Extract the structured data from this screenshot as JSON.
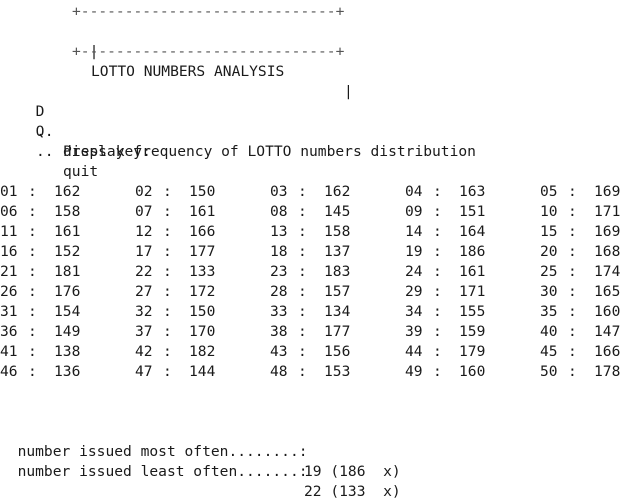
{
  "header": {
    "border_top": "+-----------------------------+",
    "title_left": "|",
    "title": "LOTTO NUMBERS ANALYSIS",
    "title_right": "|",
    "border_bottom": "+-----------------------------+"
  },
  "menu": {
    "items": [
      {
        "key": "D",
        "sep": "..",
        "label": "display frequency of LOTTO numbers distribution"
      },
      {
        "key": "Q",
        "sep": "..",
        "label": "quit"
      }
    ],
    "prompt": "Press key:"
  },
  "frequency_table": {
    "rows": [
      [
        {
          "n": "01",
          "f": "162"
        },
        {
          "n": "02",
          "f": "150"
        },
        {
          "n": "03",
          "f": "162"
        },
        {
          "n": "04",
          "f": "163"
        },
        {
          "n": "05",
          "f": "169"
        }
      ],
      [
        {
          "n": "06",
          "f": "158"
        },
        {
          "n": "07",
          "f": "161"
        },
        {
          "n": "08",
          "f": "145"
        },
        {
          "n": "09",
          "f": "151"
        },
        {
          "n": "10",
          "f": "171"
        }
      ],
      [
        {
          "n": "11",
          "f": "161"
        },
        {
          "n": "12",
          "f": "166"
        },
        {
          "n": "13",
          "f": "158"
        },
        {
          "n": "14",
          "f": "164"
        },
        {
          "n": "15",
          "f": "169"
        }
      ],
      [
        {
          "n": "16",
          "f": "152"
        },
        {
          "n": "17",
          "f": "177"
        },
        {
          "n": "18",
          "f": "137"
        },
        {
          "n": "19",
          "f": "186"
        },
        {
          "n": "20",
          "f": "168"
        }
      ],
      [
        {
          "n": "21",
          "f": "181"
        },
        {
          "n": "22",
          "f": "133"
        },
        {
          "n": "23",
          "f": "183"
        },
        {
          "n": "24",
          "f": "161"
        },
        {
          "n": "25",
          "f": "174"
        }
      ],
      [
        {
          "n": "26",
          "f": "176"
        },
        {
          "n": "27",
          "f": "172"
        },
        {
          "n": "28",
          "f": "157"
        },
        {
          "n": "29",
          "f": "171"
        },
        {
          "n": "30",
          "f": "165"
        }
      ],
      [
        {
          "n": "31",
          "f": "154"
        },
        {
          "n": "32",
          "f": "150"
        },
        {
          "n": "33",
          "f": "134"
        },
        {
          "n": "34",
          "f": "155"
        },
        {
          "n": "35",
          "f": "160"
        }
      ],
      [
        {
          "n": "36",
          "f": "149"
        },
        {
          "n": "37",
          "f": "170"
        },
        {
          "n": "38",
          "f": "177"
        },
        {
          "n": "39",
          "f": "159"
        },
        {
          "n": "40",
          "f": "147"
        }
      ],
      [
        {
          "n": "41",
          "f": "138"
        },
        {
          "n": "42",
          "f": "182"
        },
        {
          "n": "43",
          "f": "156"
        },
        {
          "n": "44",
          "f": "179"
        },
        {
          "n": "45",
          "f": "166"
        }
      ],
      [
        {
          "n": "46",
          "f": "136"
        },
        {
          "n": "47",
          "f": "144"
        },
        {
          "n": "48",
          "f": "153"
        },
        {
          "n": "49",
          "f": "160"
        },
        {
          "n": "50",
          "f": "178"
        }
      ]
    ],
    "separator": ":"
  },
  "summary": {
    "most": {
      "label": "number issued most often........:",
      "value": "19 (186  x)"
    },
    "least": {
      "label": "number issued least often.......:",
      "value": "22 (133  x)"
    }
  }
}
